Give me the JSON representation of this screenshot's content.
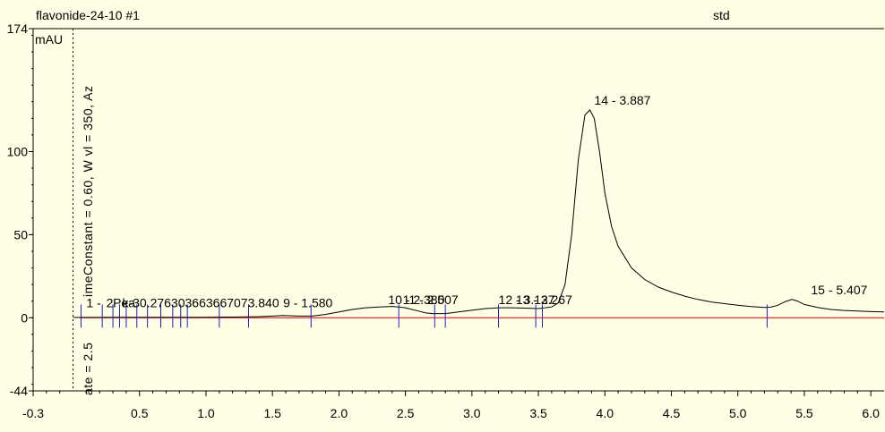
{
  "header": {
    "left_title": "flavonide-24-10 #1",
    "right_title": "std"
  },
  "vertical_annotations": {
    "lower": "ate = 2.5",
    "upper": "imeConstant = 0.60, W vl = 350, Az"
  },
  "colors": {
    "background": "#FFFFE6",
    "trace": "#000000",
    "baseline": "#CC0000",
    "peak_markers": "#1C1CCC",
    "integration": "#CC00CC"
  },
  "chart_data": {
    "type": "line",
    "title": "flavonide-24-10 #1",
    "subtitle": "std",
    "xlabel": "",
    "ylabel": "mAU",
    "xlim": [
      -0.3,
      6.1
    ],
    "ylim": [
      -44,
      174
    ],
    "x_ticks": [
      -0.3,
      0.5,
      1.0,
      1.5,
      2.0,
      2.5,
      3.0,
      3.5,
      4.0,
      4.5,
      5.0,
      5.5,
      6.0
    ],
    "x_tick_labels": [
      "-0.3",
      "0.5",
      "1.0",
      "1.5",
      "2.0",
      "2.5",
      "3.0",
      "3.5",
      "4.0",
      "4.5",
      "5.0",
      "5.5",
      "6.0"
    ],
    "y_ticks": [
      -44,
      0,
      50,
      100,
      174
    ],
    "y_tick_labels": [
      "-44",
      "0",
      "50",
      "100",
      "174"
    ],
    "grid": false,
    "injection_time": 0.0,
    "series": [
      {
        "x": [
          0.0,
          0.2,
          0.4,
          0.6,
          0.8,
          1.0,
          1.2,
          1.4,
          1.5,
          1.58,
          1.7,
          1.8,
          1.9,
          2.0,
          2.1,
          2.2,
          2.3,
          2.4,
          2.45,
          2.5,
          2.55,
          2.6,
          2.65,
          2.7,
          2.8,
          2.9,
          3.0,
          3.1,
          3.2,
          3.3,
          3.4,
          3.5,
          3.6,
          3.65,
          3.7,
          3.75,
          3.8,
          3.85,
          3.887,
          3.92,
          3.96,
          4.0,
          4.05,
          4.1,
          4.2,
          4.3,
          4.4,
          4.5,
          4.6,
          4.7,
          4.8,
          4.9,
          5.0,
          5.1,
          5.2,
          5.25,
          5.3,
          5.35,
          5.407,
          5.45,
          5.5,
          5.6,
          5.7,
          5.8,
          5.9,
          6.0,
          6.1
        ],
        "y": [
          0.2,
          0.2,
          0.3,
          0.3,
          0.3,
          0.3,
          0.4,
          0.7,
          1.0,
          1.3,
          1.0,
          1.0,
          2.0,
          3.5,
          5.0,
          6.0,
          6.5,
          6.8,
          6.5,
          6.0,
          5.0,
          4.0,
          3.0,
          2.5,
          2.5,
          3.5,
          4.5,
          5.5,
          6.0,
          6.0,
          5.8,
          5.5,
          6.5,
          9.0,
          20.0,
          50.0,
          95.0,
          122.0,
          125.0,
          120.0,
          100.0,
          75.0,
          55.0,
          43.0,
          30.0,
          23.0,
          18.5,
          15.5,
          13.0,
          11.0,
          9.5,
          8.5,
          7.5,
          6.7,
          6.2,
          6.4,
          7.5,
          9.5,
          11.0,
          10.0,
          8.0,
          6.2,
          5.0,
          4.4,
          4.0,
          3.7,
          3.5
        ]
      }
    ],
    "baseline_y": 0,
    "peak_markers": [
      {
        "x": 0.06
      },
      {
        "x": 0.22
      },
      {
        "x": 0.3
      },
      {
        "x": 0.35
      },
      {
        "x": 0.4
      },
      {
        "x": 0.48
      },
      {
        "x": 0.56
      },
      {
        "x": 0.66
      },
      {
        "x": 0.75
      },
      {
        "x": 0.81
      },
      {
        "x": 0.86
      },
      {
        "x": 1.1
      },
      {
        "x": 1.32
      },
      {
        "x": 1.79
      },
      {
        "x": 2.45
      },
      {
        "x": 2.72
      },
      {
        "x": 2.8
      },
      {
        "x": 3.2
      },
      {
        "x": 3.48
      },
      {
        "x": 3.53
      },
      {
        "x": 5.22
      }
    ],
    "peak_labels": [
      {
        "text": "1 -",
        "x": 0.1,
        "y": 3
      },
      {
        "text": "2",
        "x": 0.25,
        "y": 3
      },
      {
        "text": "Pea",
        "x": 0.3,
        "y": 3
      },
      {
        "text": "k-30.276303663667073.840",
        "x": 0.37,
        "y": 3
      },
      {
        "text": "9 - 1.580",
        "x": 1.58,
        "y": 3
      },
      {
        "text": "10 - 2.380",
        "x": 2.37,
        "y": 5
      },
      {
        "text": "11 - 2.507",
        "x": 2.48,
        "y": 5
      },
      {
        "text": "12 - 3.127",
        "x": 3.2,
        "y": 5
      },
      {
        "text": "13 - 3.267",
        "x": 3.33,
        "y": 5
      },
      {
        "text": "14 - 3.887",
        "x": 3.92,
        "y": 125
      },
      {
        "text": "15 - 5.407",
        "x": 5.55,
        "y": 11
      }
    ]
  }
}
